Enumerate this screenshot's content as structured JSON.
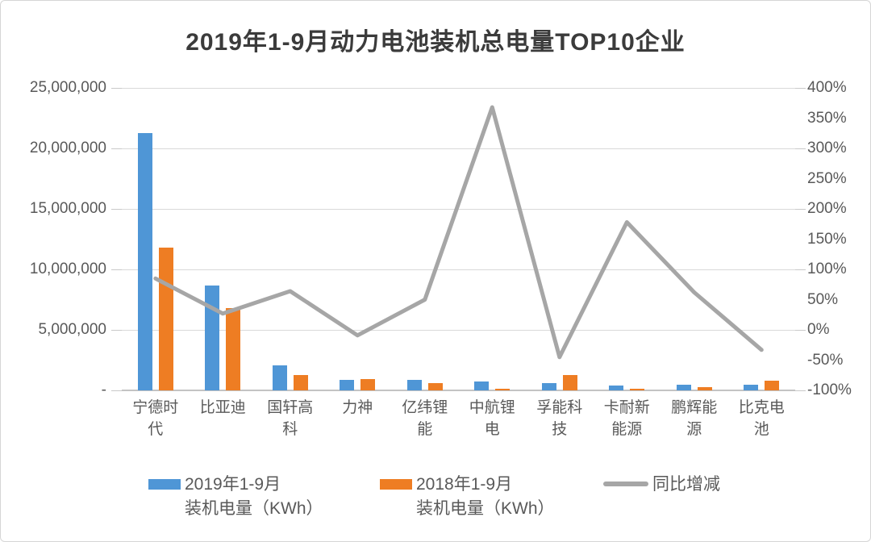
{
  "chart_data": {
    "type": "combo-bar-line",
    "title": "2019年1-9月动力电池装机总电量TOP10企业",
    "categories": [
      "宁德时代",
      "比亚迪",
      "国轩高科",
      "力神",
      "亿纬锂能",
      "中航锂电",
      "孚能科技",
      "卡耐新能源",
      "鹏辉能源",
      "比克电池"
    ],
    "series": [
      {
        "name": "2019年1-9月\n装机电量（KWh）",
        "type": "bar",
        "axis": "left",
        "color": "#4f96d6",
        "values": [
          21300000,
          8700000,
          2100000,
          850000,
          900000,
          720000,
          600000,
          420000,
          450000,
          490000
        ]
      },
      {
        "name": "2018年1-9月\n装机电量（KWh）",
        "type": "bar",
        "axis": "left",
        "color": "#ee7d23",
        "values": [
          11800000,
          6800000,
          1300000,
          950000,
          580000,
          160000,
          1280000,
          160000,
          280000,
          830000
        ]
      },
      {
        "name": "同比增减",
        "type": "line",
        "axis": "right",
        "color": "#a6a6a6",
        "values": [
          85,
          27,
          64,
          -9,
          50,
          368,
          -45,
          178,
          62,
          -33
        ]
      }
    ],
    "left_axis": {
      "min": 0,
      "max": 25000000,
      "tick_labels_top_to_bottom": [
        "25,000,000",
        "20,000,000",
        "15,000,000",
        "10,000,000",
        "5,000,000",
        "-"
      ]
    },
    "right_axis": {
      "min": -100,
      "max": 400,
      "unit": "%",
      "tick_labels_top_to_bottom": [
        "400%",
        "350%",
        "300%",
        "250%",
        "200%",
        "150%",
        "100%",
        "50%",
        "0%",
        "-50%",
        "-100%"
      ]
    },
    "grid": true,
    "legend_position": "bottom",
    "colors": {
      "grid": "#d9d9d9",
      "axis_text": "#595959",
      "title_text": "#3b3b3b",
      "bar_2019": "#4f96d6",
      "bar_2018": "#ee7d23",
      "growth_line": "#a6a6a6"
    }
  }
}
